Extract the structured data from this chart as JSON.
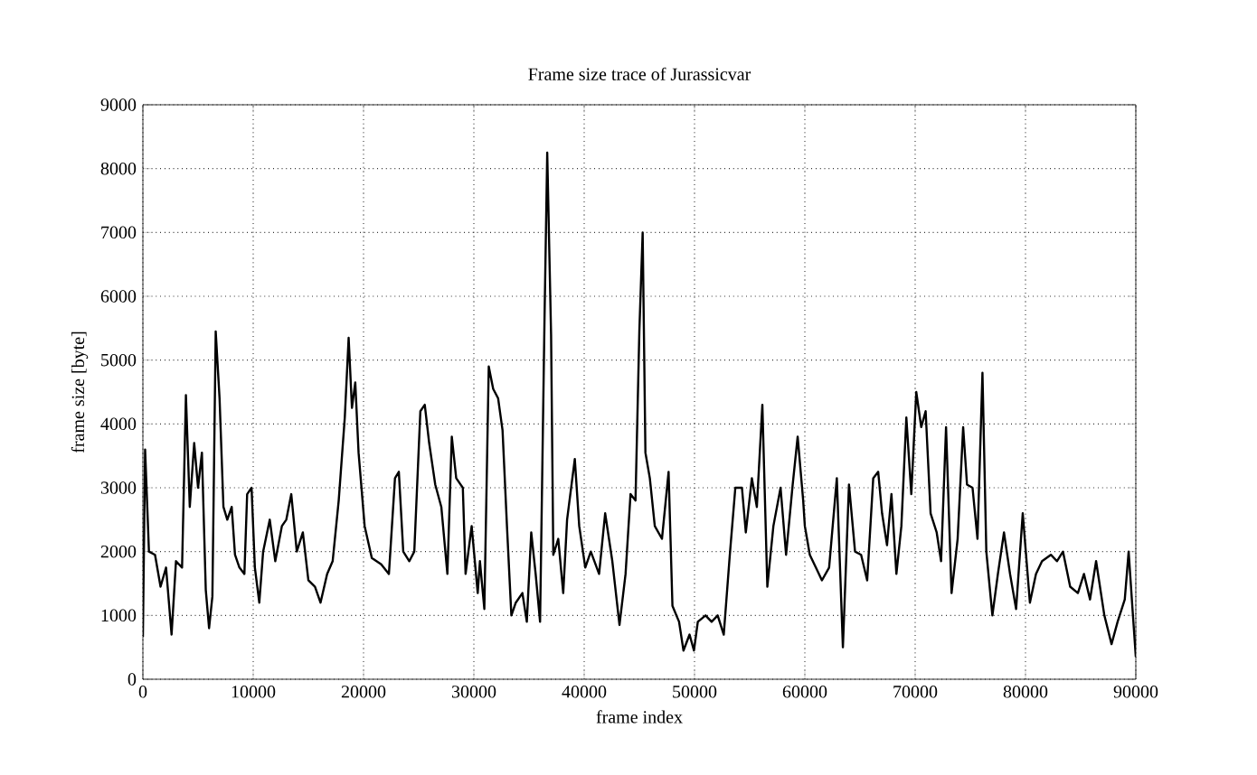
{
  "chart_data": {
    "type": "line",
    "title": "Frame size trace of Jurassicvar",
    "xlabel": "frame index",
    "ylabel": "frame size [byte]",
    "x": [
      0,
      200,
      550,
      1100,
      1600,
      2100,
      2600,
      3000,
      3550,
      3900,
      4250,
      4650,
      5000,
      5350,
      5700,
      6000,
      6300,
      6600,
      6950,
      7300,
      7650,
      8050,
      8350,
      8750,
      9200,
      9450,
      9850,
      10150,
      10550,
      10900,
      11500,
      12000,
      12600,
      13000,
      13450,
      13950,
      14500,
      15000,
      15600,
      16100,
      16700,
      17200,
      17750,
      18300,
      18650,
      18950,
      19250,
      19550,
      20100,
      20750,
      21600,
      22300,
      22850,
      23200,
      23600,
      24150,
      24600,
      25150,
      25550,
      25950,
      26500,
      27050,
      27600,
      28000,
      28400,
      29000,
      29250,
      29800,
      30350,
      30550,
      30950,
      31350,
      31750,
      32200,
      32600,
      33000,
      33400,
      33800,
      34400,
      34800,
      35200,
      35600,
      36000,
      36400,
      36650,
      37000,
      37200,
      37650,
      38100,
      38450,
      39150,
      39550,
      40100,
      40600,
      41350,
      41900,
      42550,
      43200,
      43750,
      44200,
      44650,
      45000,
      45300,
      45550,
      45950,
      46400,
      47050,
      47650,
      48000,
      48600,
      49000,
      49550,
      49950,
      50300,
      51000,
      51550,
      52100,
      52650,
      53200,
      53700,
      54300,
      54650,
      55200,
      55650,
      56150,
      56600,
      57150,
      57800,
      58300,
      58900,
      59350,
      59850,
      60000,
      60450,
      61000,
      61550,
      62200,
      62900,
      63450,
      64000,
      64550,
      65100,
      65650,
      66200,
      66650,
      67000,
      67450,
      67850,
      68300,
      68750,
      69200,
      69650,
      70100,
      70550,
      70950,
      71400,
      71950,
      72350,
      72800,
      73300,
      73850,
      74350,
      74700,
      75200,
      75650,
      76100,
      76450,
      77000,
      77500,
      78050,
      78600,
      79150,
      79750,
      80400,
      80950,
      81500,
      82300,
      82850,
      83400,
      84050,
      84750,
      85300,
      85850,
      86400,
      87150,
      87800,
      88350,
      89000,
      89350,
      89700,
      90000
    ],
    "series": [
      {
        "color": "#000000",
        "values": [
          660,
          3600,
          2000,
          1950,
          1450,
          1750,
          700,
          1850,
          1750,
          4450,
          2700,
          3700,
          3000,
          3550,
          1400,
          800,
          1300,
          5450,
          4400,
          2700,
          2500,
          2700,
          1950,
          1750,
          1650,
          2900,
          3000,
          1750,
          1200,
          2000,
          2500,
          1850,
          2400,
          2500,
          2900,
          2000,
          2300,
          1550,
          1450,
          1200,
          1650,
          1850,
          2800,
          4100,
          5350,
          4250,
          4650,
          3550,
          2400,
          1900,
          1800,
          1650,
          3150,
          3250,
          2000,
          1850,
          2000,
          4200,
          4300,
          3700,
          3050,
          2700,
          1650,
          3800,
          3150,
          3000,
          1650,
          2400,
          1350,
          1850,
          1100,
          4900,
          4550,
          4400,
          3900,
          2400,
          1000,
          1200,
          1350,
          900,
          2300,
          1650,
          900,
          5600,
          8250,
          5400,
          1950,
          2200,
          1350,
          2500,
          3450,
          2400,
          1750,
          2000,
          1650,
          2600,
          1850,
          850,
          1650,
          2900,
          2800,
          5450,
          7000,
          3550,
          3150,
          2400,
          2200,
          3250,
          1150,
          900,
          450,
          700,
          450,
          900,
          1000,
          900,
          1000,
          700,
          1950,
          3000,
          3000,
          2300,
          3150,
          2700,
          4300,
          1450,
          2400,
          3000,
          1950,
          3050,
          3800,
          2800,
          2400,
          1950,
          1750,
          1550,
          1750,
          3150,
          500,
          3050,
          2000,
          1950,
          1550,
          3150,
          3250,
          2600,
          2100,
          2900,
          1650,
          2400,
          4100,
          2900,
          4500,
          3950,
          4200,
          2600,
          2300,
          1850,
          3950,
          1350,
          2200,
          3950,
          3050,
          3000,
          2200,
          4800,
          2000,
          1000,
          1650,
          2300,
          1650,
          1100,
          2600,
          1200,
          1650,
          1850,
          1950,
          1850,
          2000,
          1450,
          1350,
          1650,
          1250,
          1850,
          1000,
          550,
          900,
          1250,
          2000,
          1100,
          350
        ]
      }
    ],
    "xlim": [
      0,
      90000
    ],
    "ylim": [
      0,
      9000
    ],
    "xticks": [
      0,
      10000,
      20000,
      30000,
      40000,
      50000,
      60000,
      70000,
      80000,
      90000
    ],
    "yticks": [
      0,
      1000,
      2000,
      3000,
      4000,
      5000,
      6000,
      7000,
      8000,
      9000
    ],
    "grid": true,
    "marker": "none",
    "line_style": "solid"
  }
}
